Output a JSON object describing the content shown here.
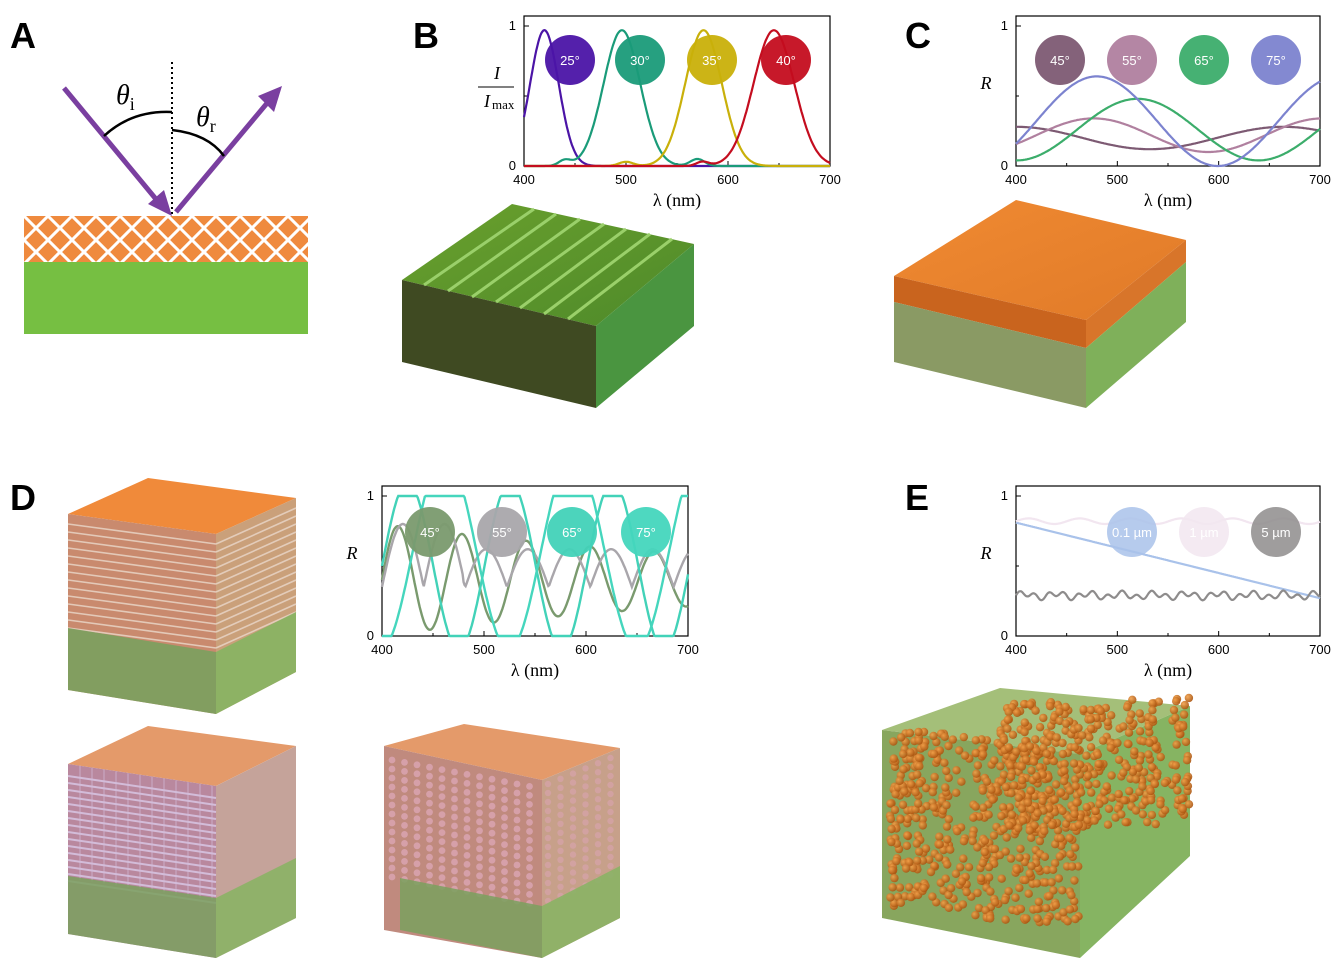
{
  "panels": {
    "A": {
      "letter": "A",
      "theta_i": "θ",
      "theta_i_sub": "i",
      "theta_r": "θ",
      "theta_r_sub": "r"
    },
    "B": {
      "letter": "B"
    },
    "C": {
      "letter": "C"
    },
    "D": {
      "letter": "D"
    },
    "E": {
      "letter": "E"
    }
  },
  "colors": {
    "arrow": "#7a3fa0",
    "coating": "#ef8a3e",
    "substrate": "#76bf42",
    "block_green": "#5e9a2e",
    "block_dark": "#3f4a22"
  },
  "chart_data": [
    {
      "id": "B",
      "type": "line",
      "ylabel_num": "I",
      "ylabel_den": "I",
      "ylabel_den_sub": "max",
      "xlabel": "λ (nm)",
      "xlim": [
        400,
        700
      ],
      "ylim": [
        0,
        1
      ],
      "xticks": [
        "400",
        "500",
        "600",
        "700"
      ],
      "yticks": [
        "0",
        "1"
      ],
      "legend_placement": "top",
      "series": [
        {
          "name": "25°",
          "color": "#4b14a6",
          "peak": 420,
          "width": 18,
          "x": [
            400,
            410,
            420,
            430,
            440,
            450,
            460,
            470,
            480,
            500,
            600,
            700
          ],
          "y": [
            0.2,
            0.85,
            0.97,
            0.9,
            0.4,
            0.05,
            0.02,
            0.01,
            0.01,
            0.01,
            0.0,
            0.0
          ]
        },
        {
          "name": "30°",
          "color": "#1a9b79",
          "peak": 495,
          "width": 22
        },
        {
          "name": "35°",
          "color": "#c9b00a",
          "peak": 575,
          "width": 22
        },
        {
          "name": "40°",
          "color": "#c40d1f",
          "peak": 645,
          "width": 24
        }
      ]
    },
    {
      "id": "C",
      "type": "line",
      "ylabel": "R",
      "xlabel": "λ (nm)",
      "xlim": [
        400,
        700
      ],
      "ylim": [
        0,
        1
      ],
      "xticks": [
        "400",
        "500",
        "600",
        "700"
      ],
      "yticks": [
        "0",
        "1"
      ],
      "legend_placement": "top",
      "series": [
        {
          "name": "45°",
          "color": "#7d5a73"
        },
        {
          "name": "55°",
          "color": "#b0809f"
        },
        {
          "name": "65°",
          "color": "#3cad6b"
        },
        {
          "name": "75°",
          "color": "#7c83cf"
        }
      ]
    },
    {
      "id": "D",
      "type": "line",
      "ylabel": "R",
      "xlabel": "λ (nm)",
      "xlim": [
        400,
        700
      ],
      "ylim": [
        0,
        1
      ],
      "xticks": [
        "400",
        "500",
        "600",
        "700"
      ],
      "yticks": [
        "0",
        "1"
      ],
      "legend_placement": "top",
      "series": [
        {
          "name": "45°",
          "color": "#7a9a6e"
        },
        {
          "name": "55°",
          "color": "#a9a6ab"
        },
        {
          "name": "65°",
          "color": "#42d2b8"
        },
        {
          "name": "75°",
          "color": "#45d6bd"
        }
      ]
    },
    {
      "id": "E",
      "type": "line",
      "ylabel": "R",
      "xlabel": "λ (nm)",
      "xlim": [
        400,
        700
      ],
      "ylim": [
        0,
        1
      ],
      "xticks": [
        "400",
        "500",
        "600",
        "700"
      ],
      "yticks": [
        "0",
        "1"
      ],
      "legend_placement": "top-right",
      "series": [
        {
          "name": "0.1 µm",
          "color": "#a9c2ea"
        },
        {
          "name": "1 µm",
          "color": "#f2e6f0"
        },
        {
          "name": "5 µm",
          "color": "#8e8c8c"
        }
      ]
    }
  ]
}
